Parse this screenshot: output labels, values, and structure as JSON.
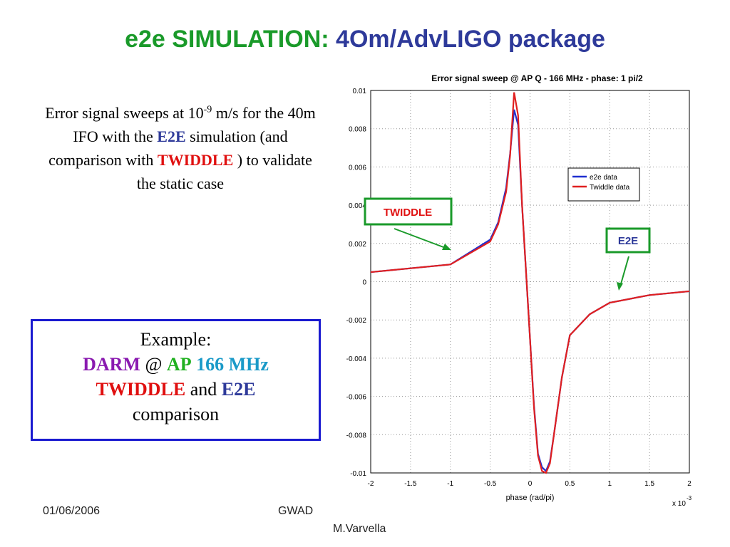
{
  "slide": {
    "title": [
      "e2e SIMULATION:",
      "4Om/AdvLIGO package"
    ],
    "intro": [
      "Error signal sweeps at 10",
      "-9",
      " m/s for the 40m IFO with the ",
      "E2E",
      " simulation (and comparison with ",
      "TWIDDLE",
      " )  to validate the static case"
    ],
    "example": {
      "heading": "Example:",
      "line2": [
        "DARM",
        "@",
        "AP",
        "166 MHz"
      ],
      "line3": [
        "TWIDDLE",
        "and",
        "E2E"
      ],
      "line4": "comparison"
    },
    "annotations": [
      "TWIDDLE",
      "E2E"
    ],
    "footer": {
      "date": "01/06/2006",
      "org": "GWAD",
      "author": "M.Varvella"
    }
  },
  "chart_data": {
    "type": "line",
    "title": "Error signal sweep @ AP Q - 166 MHz - phase: 1 pi/2",
    "xlabel": "phase (rad/pi)",
    "x_multiplier": [
      "x 10",
      "-3"
    ],
    "x": [
      -2,
      -1.5,
      -1,
      -0.5,
      -0.4,
      -0.3,
      -0.25,
      -0.2,
      -0.15,
      -0.1,
      -0.05,
      0,
      0.05,
      0.1,
      0.15,
      0.2,
      0.25,
      0.3,
      0.4,
      0.5,
      0.75,
      1,
      1.5,
      2
    ],
    "series": [
      {
        "name": "e2e data",
        "color": "#1f2fd0",
        "values": [
          0.0005,
          0.0007,
          0.0009,
          0.0022,
          0.0031,
          0.0049,
          0.0067,
          0.009,
          0.0082,
          0.004,
          0.0005,
          -0.003,
          -0.0065,
          -0.009,
          -0.0097,
          -0.0099,
          -0.0094,
          -0.008,
          -0.005,
          -0.0028,
          -0.0017,
          -0.0011,
          -0.0007,
          -0.0005
        ]
      },
      {
        "name": "Twiddle data",
        "color": "#e02020",
        "values": [
          0.0005,
          0.0007,
          0.0009,
          0.0021,
          0.003,
          0.0047,
          0.0066,
          0.0099,
          0.0087,
          0.004,
          0.0005,
          -0.003,
          -0.0066,
          -0.0091,
          -0.0099,
          -0.01,
          -0.0095,
          -0.008,
          -0.005,
          -0.0028,
          -0.0017,
          -0.0011,
          -0.0007,
          -0.0005
        ]
      }
    ],
    "xlim": [
      -2,
      2
    ],
    "ylim": [
      -0.01,
      0.01
    ],
    "xticks": [
      -2,
      -1.5,
      -1,
      -0.5,
      0,
      0.5,
      1,
      1.5,
      2
    ],
    "yticks": [
      -0.01,
      -0.008,
      -0.006,
      -0.004,
      -0.002,
      0,
      0.002,
      0.004,
      0.006,
      0.008,
      0.01
    ],
    "grid": true,
    "legend": "upper right"
  }
}
